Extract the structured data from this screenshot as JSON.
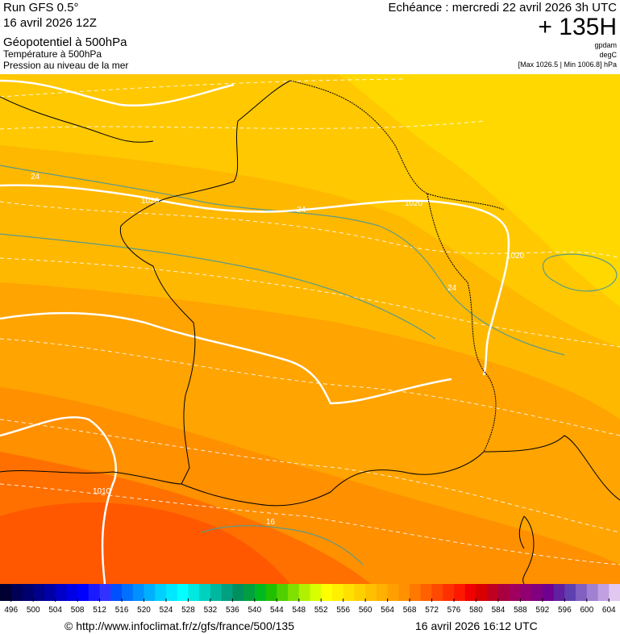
{
  "header": {
    "run": "Run GFS 0.5°",
    "date": "16 avril 2026 12Z",
    "title": "Géopotentiel à 500hPa",
    "subtitle1": "Température à 500hPa",
    "subtitle2": "Pression au niveau de la mer",
    "echeance": "Echéance : mercredi 22 avril 2026 3h UTC",
    "lead": "+ 135H",
    "unit1": "gpdam",
    "unit2": "degC",
    "range": "[Max 1026.5 | Min 1006.8] hPa"
  },
  "contour_labels": [
    "24",
    "1020",
    "24",
    "1020",
    "1020",
    "24",
    "1010",
    "16"
  ],
  "legend": {
    "ticks": [
      496,
      500,
      504,
      508,
      512,
      516,
      520,
      524,
      528,
      532,
      536,
      540,
      544,
      548,
      552,
      556,
      560,
      564,
      568,
      572,
      576,
      580,
      584,
      588,
      592,
      596,
      600,
      604
    ],
    "colors": [
      "#000033",
      "#000055",
      "#00006e",
      "#000088",
      "#0000a5",
      "#0000c8",
      "#0000e6",
      "#0000ff",
      "#1a1aff",
      "#3232ff",
      "#0050ff",
      "#0070ff",
      "#0090ff",
      "#00b0ff",
      "#00d0ff",
      "#00e8ff",
      "#00ffff",
      "#00e8e0",
      "#00d0c0",
      "#00b8a0",
      "#00a080",
      "#009060",
      "#00a040",
      "#00b820",
      "#20c000",
      "#50d000",
      "#80e000",
      "#b0f000",
      "#d8ff00",
      "#ffff00",
      "#fff000",
      "#ffe000",
      "#ffd000",
      "#ffc000",
      "#ffb000",
      "#ffa000",
      "#ff9000",
      "#ff7800",
      "#ff6000",
      "#ff4800",
      "#ff3000",
      "#ff1800",
      "#f00000",
      "#d80000",
      "#c00020",
      "#a80040",
      "#a00060",
      "#900070",
      "#800080",
      "#700090",
      "#6020a0",
      "#6040b0",
      "#8060c0",
      "#a080d0",
      "#c0a0e0",
      "#e0c8f0"
    ]
  },
  "footer": {
    "url": "© http://www.infoclimat.fr/z/gfs/france/500/135",
    "timestamp": "16 avril 2026 16:12 UTC"
  }
}
